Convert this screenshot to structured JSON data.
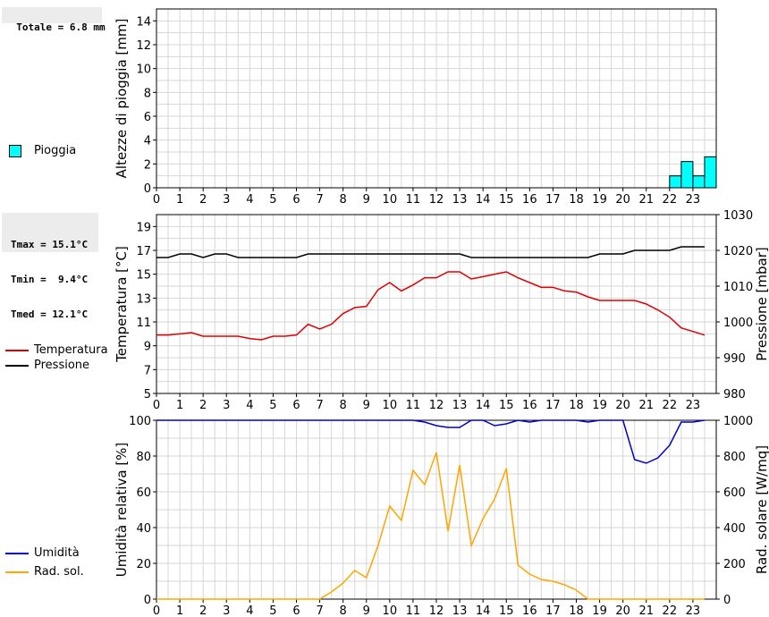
{
  "info": {
    "total_rain": "Totale = 6.8 mm",
    "tmax": "Tmax = 15.1°C",
    "tmin": "Tmin =  9.4°C",
    "tmed": "Tmed = 12.1°C"
  },
  "legend": {
    "rain": "Pioggia",
    "temperature": "Temperatura",
    "pressure": "Pressione",
    "humidity": "Umidità",
    "radiation": "Rad. sol."
  },
  "colors": {
    "rain": "#00ffff",
    "temperature": "#dd0000",
    "pressure": "#000000",
    "humidity": "#0000cc",
    "radiation": "#ffa500",
    "grid": "#d6d6d6"
  },
  "chart_data": [
    {
      "type": "bar",
      "ylabel": "Altezze di pioggia [mm]",
      "xlim": [
        0,
        24
      ],
      "ylim": [
        0,
        15
      ],
      "yticks": [
        0,
        2,
        4,
        6,
        8,
        10,
        12,
        14
      ],
      "xticks": [
        "0",
        "1",
        "2",
        "3",
        "4",
        "5",
        "6",
        "7",
        "8",
        "9",
        "10",
        "11",
        "12",
        "13",
        "14",
        "15",
        "16",
        "17",
        "18",
        "19",
        "20",
        "21",
        "22",
        "23"
      ],
      "series": [
        {
          "name": "Pioggia",
          "x": [
            22.0,
            22.5,
            23.0,
            23.5
          ],
          "values": [
            1.0,
            2.2,
            1.0,
            2.6
          ]
        }
      ]
    },
    {
      "type": "line",
      "ylabel": "Temperatura [°C]",
      "ylabel_right": "Pressione [mbar]",
      "xlim": [
        0,
        24
      ],
      "ylim": [
        5,
        20
      ],
      "yticks": [
        5,
        7,
        9,
        11,
        13,
        15,
        17,
        19
      ],
      "ylim_right": [
        980,
        1030
      ],
      "yticks_right": [
        980,
        990,
        1000,
        1010,
        1020,
        1030
      ],
      "xticks": [
        "0",
        "1",
        "2",
        "3",
        "4",
        "5",
        "6",
        "7",
        "8",
        "9",
        "10",
        "11",
        "12",
        "13",
        "14",
        "15",
        "16",
        "17",
        "18",
        "19",
        "20",
        "21",
        "22",
        "23"
      ],
      "series": [
        {
          "name": "Temperatura",
          "axis": "left",
          "x": [
            0,
            0.5,
            1,
            1.5,
            2,
            2.5,
            3,
            3.5,
            4,
            4.5,
            5,
            5.5,
            6,
            6.5,
            7,
            7.5,
            8,
            8.5,
            9,
            9.5,
            10,
            10.5,
            11,
            11.5,
            12,
            12.5,
            13,
            13.5,
            14,
            14.5,
            15,
            15.5,
            16,
            16.5,
            17,
            17.5,
            18,
            18.5,
            19,
            19.5,
            20,
            20.5,
            21,
            21.5,
            22,
            22.5,
            23,
            23.5
          ],
          "values": [
            9.9,
            9.9,
            10.0,
            10.1,
            9.8,
            9.8,
            9.8,
            9.8,
            9.6,
            9.5,
            9.8,
            9.8,
            9.9,
            10.8,
            10.4,
            10.8,
            11.7,
            12.2,
            12.3,
            13.7,
            14.3,
            13.6,
            14.1,
            14.7,
            14.7,
            15.2,
            15.2,
            14.6,
            14.8,
            15.0,
            15.2,
            14.7,
            14.3,
            13.9,
            13.9,
            13.6,
            13.5,
            13.1,
            12.8,
            12.8,
            12.8,
            12.8,
            12.5,
            12.0,
            11.4,
            10.5,
            10.2,
            9.9
          ]
        },
        {
          "name": "Pressione",
          "axis": "right",
          "x": [
            0,
            0.5,
            1,
            1.5,
            2,
            2.5,
            3,
            3.5,
            4,
            4.5,
            5,
            5.5,
            6,
            6.5,
            7,
            7.5,
            8,
            8.5,
            9,
            9.5,
            10,
            10.5,
            11,
            11.5,
            12,
            12.5,
            13,
            13.5,
            14,
            14.5,
            15,
            15.5,
            16,
            16.5,
            17,
            17.5,
            18,
            18.5,
            19,
            19.5,
            20,
            20.5,
            21,
            21.5,
            22,
            22.5,
            23,
            23.5
          ],
          "values": [
            1018,
            1018,
            1019,
            1019,
            1018,
            1019,
            1019,
            1018,
            1018,
            1018,
            1018,
            1018,
            1018,
            1019,
            1019,
            1019,
            1019,
            1019,
            1019,
            1019,
            1019,
            1019,
            1019,
            1019,
            1019,
            1019,
            1019,
            1018,
            1018,
            1018,
            1018,
            1018,
            1018,
            1018,
            1018,
            1018,
            1018,
            1018,
            1019,
            1019,
            1019,
            1020,
            1020,
            1020,
            1020,
            1021,
            1021,
            1021
          ]
        }
      ]
    },
    {
      "type": "line",
      "ylabel": "Umidità relativa [%]",
      "ylabel_right": "Rad. solare [W/mq]",
      "xlim": [
        0,
        24
      ],
      "ylim": [
        0,
        100
      ],
      "yticks": [
        0,
        20,
        40,
        60,
        80,
        100
      ],
      "ylim_right": [
        0,
        1000
      ],
      "yticks_right": [
        0,
        200,
        400,
        600,
        800,
        1000
      ],
      "xticks": [
        "0",
        "1",
        "2",
        "3",
        "4",
        "5",
        "6",
        "7",
        "8",
        "9",
        "10",
        "11",
        "12",
        "13",
        "14",
        "15",
        "16",
        "17",
        "18",
        "19",
        "20",
        "21",
        "22",
        "23"
      ],
      "series": [
        {
          "name": "Umidità",
          "axis": "left",
          "x": [
            0,
            0.5,
            1,
            1.5,
            2,
            2.5,
            3,
            3.5,
            4,
            4.5,
            5,
            5.5,
            6,
            6.5,
            7,
            7.5,
            8,
            8.5,
            9,
            9.5,
            10,
            10.5,
            11,
            11.5,
            12,
            12.5,
            13,
            13.5,
            14,
            14.5,
            15,
            15.5,
            16,
            16.5,
            17,
            17.5,
            18,
            18.5,
            19,
            19.5,
            20,
            20.5,
            21,
            21.5,
            22,
            22.5,
            23,
            23.5
          ],
          "values": [
            100,
            100,
            100,
            100,
            100,
            100,
            100,
            100,
            100,
            100,
            100,
            100,
            100,
            100,
            100,
            100,
            100,
            100,
            100,
            100,
            100,
            100,
            100,
            99,
            97,
            96,
            96,
            100,
            100,
            97,
            98,
            100,
            99,
            100,
            100,
            100,
            100,
            99,
            100,
            100,
            100,
            78,
            76,
            79,
            86,
            99,
            99,
            100
          ]
        },
        {
          "name": "Rad. sol.",
          "axis": "right",
          "x": [
            0,
            0.5,
            1,
            1.5,
            2,
            2.5,
            3,
            3.5,
            4,
            4.5,
            5,
            5.5,
            6,
            6.5,
            7,
            7.5,
            8,
            8.5,
            9,
            9.5,
            10,
            10.5,
            11,
            11.5,
            12,
            12.5,
            13,
            13.5,
            14,
            14.5,
            15,
            15.5,
            16,
            16.5,
            17,
            17.5,
            18,
            18.5,
            19,
            19.5,
            20,
            20.5,
            21,
            21.5,
            22,
            22.5,
            23,
            23.5
          ],
          "values": [
            0,
            0,
            0,
            0,
            0,
            0,
            0,
            0,
            0,
            0,
            0,
            0,
            0,
            0,
            0,
            40,
            90,
            160,
            120,
            300,
            520,
            440,
            720,
            640,
            820,
            380,
            750,
            300,
            450,
            560,
            730,
            190,
            140,
            110,
            100,
            80,
            50,
            0,
            0,
            0,
            0,
            0,
            0,
            0,
            0,
            0,
            0,
            0
          ]
        }
      ]
    }
  ]
}
